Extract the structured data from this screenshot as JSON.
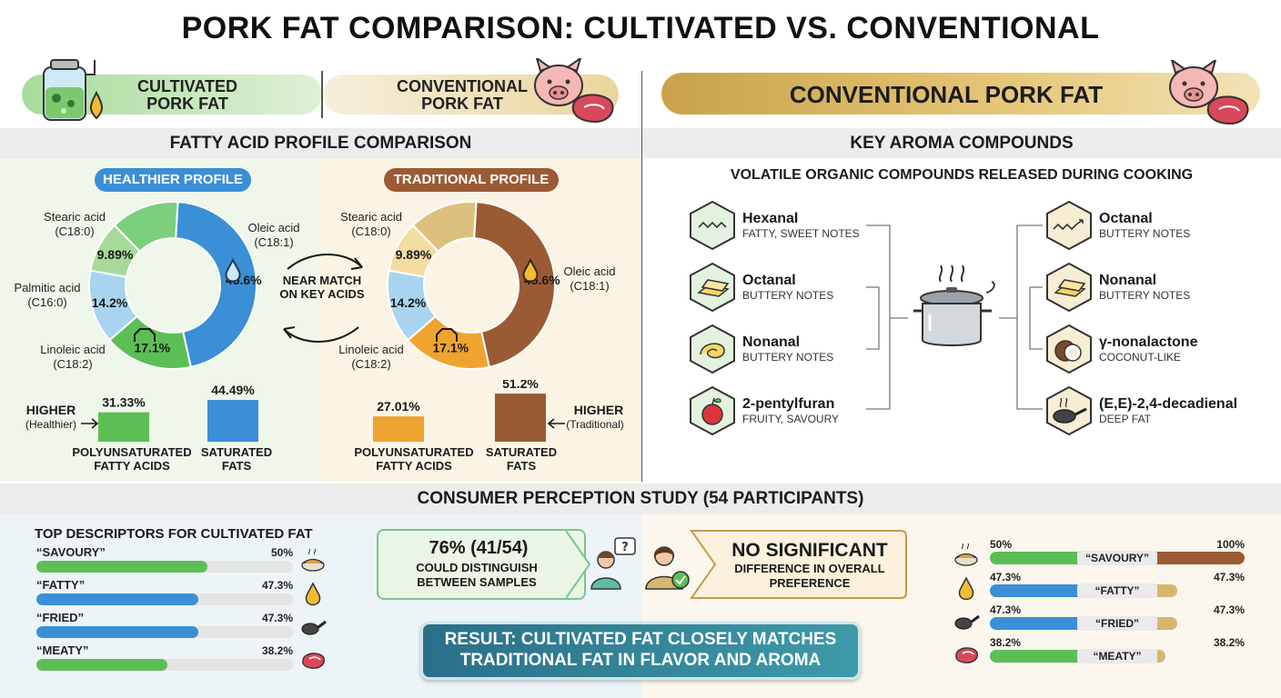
{
  "title": "PORK FAT COMPARISON: CULTIVATED VS. CONVENTIONAL",
  "header": {
    "cultivated": "CULTIVATED PORK FAT",
    "conventional": "CONVENTIONAL PORK FAT",
    "right_banner": "CONVENTIONAL PORK FAT"
  },
  "fatty": {
    "section_title": "FATTY ACID PROFILE COMPARISON",
    "healthier_label": "HEALTHIER PROFILE",
    "traditional_label": "TRADITIONAL PROFILE",
    "near_match": "NEAR MATCH ON KEY ACIDS",
    "labels": {
      "stearic": "Stearic acid (C18:0)",
      "palmitic": "Palmitic acid (C16:0)",
      "linoleic": "Linoleic acid (C18:2)",
      "oleic": "Oleic acid (C18:1)"
    },
    "higher_left": "HIGHER",
    "higher_left_sub": "(Healthier)",
    "higher_right": "HIGHER",
    "higher_right_sub": "(Traditional)",
    "bar_labels": {
      "pufa": "POLYUNSATURATED FATTY ACIDS",
      "sfa": "SATURATED FATS"
    }
  },
  "chart_data": [
    {
      "type": "pie",
      "title": "HEALTHIER PROFILE",
      "labels": [
        "Oleic acid (C18:1)",
        "Linoleic acid (C18:2)",
        "Palmitic acid (C16:0)",
        "Stearic acid (C18:0)"
      ],
      "values": [
        45.6,
        17.1,
        14.2,
        9.89
      ],
      "value_labels": [
        "45.6%",
        "17.1%",
        "14.2%",
        "9.89%"
      ],
      "colors": [
        "#3a8fd6",
        "#5cbf55",
        "#a8d4f0",
        "#a6d99a"
      ],
      "remainder_color": "#7ccf7c"
    },
    {
      "type": "pie",
      "title": "TRADITIONAL PROFILE",
      "labels": [
        "Oleic acid (C18:1)",
        "Linoleic acid (C18:2)",
        "Palmitic acid (C16:0)",
        "Stearic acid (C18:0)"
      ],
      "values": [
        45.6,
        17.1,
        14.2,
        9.89
      ],
      "value_labels": [
        "45.6%",
        "17.1%",
        "14.2%",
        "9.89%"
      ],
      "colors": [
        "#9a5a34",
        "#f0a430",
        "#a8d4f0",
        "#f3dca2"
      ],
      "remainder_color": "#dcc07e"
    },
    {
      "type": "bar",
      "categories": [
        "POLYUNSATURATED FATTY ACIDS",
        "SATURATED FATS"
      ],
      "values": [
        31.33,
        44.49
      ],
      "value_labels": [
        "31.33%",
        "44.49%"
      ],
      "colors": [
        "#5cbf55",
        "#3a8fd6"
      ]
    },
    {
      "type": "bar",
      "categories": [
        "POLYUNSATURATED FATTY ACIDS",
        "SATURATED FATS"
      ],
      "values": [
        27.01,
        51.2
      ],
      "value_labels": [
        "27.01%",
        "51.2%"
      ],
      "colors": [
        "#f0a430",
        "#9a5a34"
      ]
    },
    {
      "type": "bar",
      "title": "TOP DESCRIPTORS FOR CULTIVATED FAT",
      "categories": [
        "“SAVOURY”",
        "“FATTY”",
        "“FRIED”",
        "“MEATY”"
      ],
      "values": [
        50,
        47.3,
        47.3,
        38.2
      ],
      "value_labels": [
        "50%",
        "47.3%",
        "47.3%",
        "38.2%"
      ]
    },
    {
      "type": "bar",
      "categories": [
        "“SAVOURY”",
        "“FATTY”",
        "“FRIED”",
        "“MEATY”"
      ],
      "series": [
        {
          "values": [
            50,
            47.3,
            47.3,
            38.2
          ],
          "value_labels": [
            "50%",
            "47.3%",
            "47.3%",
            "38.2%"
          ]
        },
        {
          "values": [
            100,
            47.3,
            47.3,
            38.2
          ],
          "value_labels": [
            "100%",
            "47.3%",
            "47.3%",
            "38.2%"
          ]
        }
      ]
    }
  ],
  "aroma": {
    "section_title": "KEY AROMA COMPOUNDS",
    "subtitle": "VOLATILE ORGANIC COMPOUNDS RELEASED DURING COOKING",
    "left": [
      {
        "name": "Hexanal",
        "note": "FATTY, SWEET NOTES"
      },
      {
        "name": "Octanal",
        "note": "BUTTERY NOTES"
      },
      {
        "name": "Nonanal",
        "note": "BUTTERY NOTES"
      },
      {
        "name": "2-pentylfuran",
        "note": "FRUITY, SAVOURY"
      }
    ],
    "right": [
      {
        "name": "Octanal",
        "note": "BUTTERY NOTES"
      },
      {
        "name": "Nonanal",
        "note": "BUTTERY NOTES"
      },
      {
        "name": "γ-nonalactone",
        "note": "COCONUT-LIKE"
      },
      {
        "name": "(E,E)-2,4-decadienal",
        "note": "DEEP FAT"
      }
    ]
  },
  "consumer": {
    "section_title": "CONSUMER PERCEPTION STUDY (54 PARTICIPANTS)",
    "descriptors_title": "TOP DESCRIPTORS FOR CULTIVATED FAT",
    "distinguish_big": "76% (41/54)",
    "distinguish_text": "COULD DISTINGUISH BETWEEN SAMPLES",
    "no_sig_big": "NO SIGNIFICANT",
    "no_sig_text": "DIFFERENCE IN OVERALL PREFERENCE",
    "result": "RESULT: CULTIVATED FAT CLOSELY MATCHES TRADITIONAL FAT IN FLAVOR AND AROMA",
    "descriptors": [
      {
        "label": "“SAVOURY”",
        "value": 50,
        "text": "50%",
        "color": "#5cbf55",
        "icon": "noodles-icon"
      },
      {
        "label": "“FATTY”",
        "value": 47.3,
        "text": "47.3%",
        "color": "#3a8fd6",
        "icon": "fat-droplet-icon"
      },
      {
        "label": "“FRIED”",
        "value": 47.3,
        "text": "47.3%",
        "color": "#3a8fd6",
        "icon": "frying-pan-icon"
      },
      {
        "label": "“MEATY”",
        "value": 38.2,
        "text": "38.2%",
        "color": "#5cbf55",
        "icon": "steak-icon"
      }
    ],
    "compare": [
      {
        "label": "“SAVOURY”",
        "left": 50,
        "left_text": "50%",
        "right": 100,
        "right_text": "100%",
        "left_color": "#5cbf55",
        "right_color": "#9a5a34"
      },
      {
        "label": "“FATTY”",
        "left": 47.3,
        "left_text": "47.3%",
        "right": 47.3,
        "right_text": "47.3%",
        "left_color": "#3a8fd6",
        "right_color": "#d8b56c"
      },
      {
        "label": "“FRIED”",
        "left": 47.3,
        "left_text": "47.3%",
        "right": 47.3,
        "right_text": "47.3%",
        "left_color": "#3a8fd6",
        "right_color": "#d8b56c"
      },
      {
        "label": "“MEATY”",
        "left": 38.2,
        "left_text": "38.2%",
        "right": 38.2,
        "right_text": "38.2%",
        "left_color": "#5cbf55",
        "right_color": "#d8b56c"
      }
    ]
  }
}
